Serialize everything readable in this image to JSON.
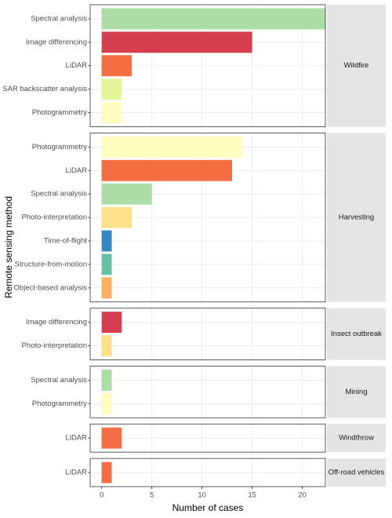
{
  "chart_data": {
    "type": "bar",
    "xlabel": "Number of cases",
    "ylabel": "Remote sensing method",
    "xlim": [
      -1.15,
      22.3
    ],
    "xticks": [
      0,
      5,
      10,
      15,
      20
    ],
    "grid": true,
    "panels": [
      {
        "label": "Wildfire",
        "categories": [
          "Spectral analysis",
          "Image differencing",
          "LiDAR",
          "SAR backscatter analysis",
          "Photogrammetry"
        ],
        "values": [
          23,
          15,
          3,
          2,
          2
        ],
        "colors": [
          "#abdda4",
          "#d53e4f",
          "#f46d43",
          "#e6f598",
          "#ffffbf"
        ]
      },
      {
        "label": "Harvesting",
        "categories": [
          "Photogrammetry",
          "LiDAR",
          "Spectral analysis",
          "Photo-interpretation",
          "Time-of-flight",
          "Structure-from-motion",
          "Object-based analysis"
        ],
        "values": [
          14,
          13,
          5,
          3,
          1,
          1,
          1
        ],
        "colors": [
          "#ffffbf",
          "#f46d43",
          "#abdda4",
          "#fee08b",
          "#3288bd",
          "#66c2a5",
          "#fdae61"
        ]
      },
      {
        "label": "Insect outbreak",
        "categories": [
          "Image differencing",
          "Photo-interpretation"
        ],
        "values": [
          2,
          1
        ],
        "colors": [
          "#d53e4f",
          "#fee08b"
        ]
      },
      {
        "label": "Mining",
        "categories": [
          "Spectral analysis",
          "Photogrammetry"
        ],
        "values": [
          1,
          1
        ],
        "colors": [
          "#abdda4",
          "#ffffbf"
        ]
      },
      {
        "label": "Windthrow",
        "categories": [
          "LiDAR"
        ],
        "values": [
          2
        ],
        "colors": [
          "#f46d43"
        ]
      },
      {
        "label": "Off-road vehicles",
        "categories": [
          "LiDAR"
        ],
        "values": [
          1
        ],
        "colors": [
          "#f46d43"
        ]
      }
    ]
  }
}
